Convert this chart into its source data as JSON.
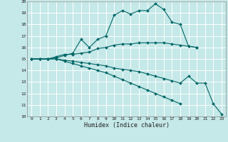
{
  "title": "",
  "xlabel": "Humidex (Indice chaleur)",
  "xlim": [
    -0.5,
    23.5
  ],
  "ylim": [
    10,
    20
  ],
  "yticks": [
    10,
    11,
    12,
    13,
    14,
    15,
    16,
    17,
    18,
    19,
    20
  ],
  "xticks": [
    0,
    1,
    2,
    3,
    4,
    5,
    6,
    7,
    8,
    9,
    10,
    11,
    12,
    13,
    14,
    15,
    16,
    17,
    18,
    19,
    20,
    21,
    22,
    23
  ],
  "bg_color": "#c5e8e8",
  "grid_color": "#ffffff",
  "line_color": "#006666",
  "curves": [
    {
      "x": [
        0,
        1,
        2,
        3,
        4,
        5,
        6,
        7,
        8,
        9,
        10,
        11,
        12,
        13,
        14,
        15,
        16,
        17,
        18,
        19,
        20
      ],
      "y": [
        15.0,
        15.0,
        15.0,
        15.1,
        15.3,
        15.5,
        16.7,
        16.0,
        16.7,
        17.0,
        18.8,
        19.2,
        18.9,
        19.2,
        19.2,
        19.8,
        19.3,
        18.2,
        18.0,
        16.1,
        16.0
      ]
    },
    {
      "x": [
        0,
        1,
        2,
        3,
        4,
        5,
        6,
        7,
        8,
        9,
        10,
        11,
        12,
        13,
        14,
        15,
        16,
        17,
        18,
        19,
        20
      ],
      "y": [
        15.0,
        15.0,
        15.0,
        15.2,
        15.4,
        15.4,
        15.5,
        15.6,
        15.9,
        16.0,
        16.2,
        16.3,
        16.3,
        16.4,
        16.4,
        16.4,
        16.4,
        16.3,
        16.2,
        16.1,
        16.0
      ]
    },
    {
      "x": [
        0,
        1,
        2,
        3,
        4,
        5,
        6,
        7,
        8,
        9,
        10,
        11,
        12,
        13,
        14,
        15,
        16,
        17,
        18,
        19,
        20,
        21,
        22,
        23
      ],
      "y": [
        15.0,
        15.0,
        15.0,
        15.0,
        14.9,
        14.8,
        14.7,
        14.6,
        14.5,
        14.4,
        14.2,
        14.1,
        14.0,
        13.9,
        13.7,
        13.5,
        13.3,
        13.1,
        12.9,
        13.5,
        12.9,
        12.9,
        11.1,
        10.2
      ]
    },
    {
      "x": [
        0,
        1,
        2,
        3,
        4,
        5,
        6,
        7,
        8,
        9,
        10,
        11,
        12,
        13,
        14,
        15,
        16,
        17,
        18
      ],
      "y": [
        15.0,
        15.0,
        15.0,
        15.0,
        14.8,
        14.6,
        14.4,
        14.2,
        14.0,
        13.8,
        13.5,
        13.2,
        12.9,
        12.6,
        12.3,
        12.0,
        11.7,
        11.4,
        11.1
      ]
    }
  ]
}
